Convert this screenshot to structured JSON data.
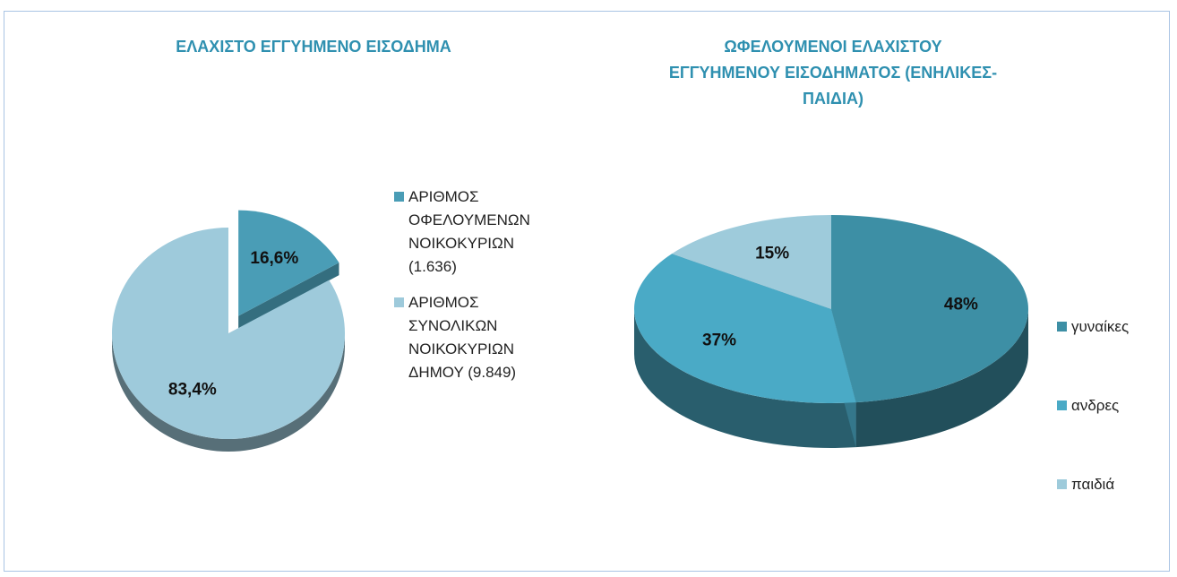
{
  "chart_data": [
    {
      "type": "pie",
      "title": "ΕΛΑΧΙΣΤΟ ΕΓΓΥΗΜΕΝΟ ΕΙΣΟΔΗΜΑ",
      "categories": [
        "ΑΡΙΘΜΟΣ ΟΦΕΛΟΥΜΕΝΩΝ ΝΟΙΚΟΚΥΡΙΩΝ (1.636)",
        "ΑΡΙΘΜΟΣ ΣΥΝΟΛΙΚΩΝ ΝΟΙΚΟΚΥΡΙΩΝ ΔΗΜΟΥ (9.849)"
      ],
      "values": [
        16.6,
        83.4
      ],
      "value_labels": [
        "16,6%",
        "83,4%"
      ],
      "colors": [
        "#4a9db6",
        "#9ecadb"
      ]
    },
    {
      "type": "pie",
      "title": "ΩΦΕΛΟΥΜΕΝΟΙ ΕΛΑΧΙΣΤΟΥ ΕΓΓΥΗΜΕΝΟΥ ΕΙΣΟΔΗΜΑΤΟΣ (ΕΝΗΛΙΚΕΣ-ΠΑΙΔΙΑ)",
      "categories": [
        "γυναίκες",
        "ανδρες",
        "παιδιά"
      ],
      "values": [
        48,
        37,
        15
      ],
      "value_labels": [
        "48%",
        "37%",
        "15%"
      ],
      "colors": [
        "#3d8fa5",
        "#4aaac6",
        "#9ecbdb"
      ]
    }
  ]
}
